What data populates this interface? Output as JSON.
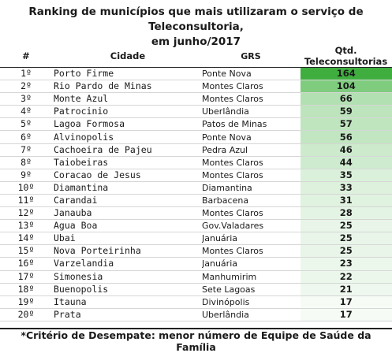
{
  "title_line1": "Ranking de municípios que mais utilizaram o serviço de Teleconsultoria,",
  "title_line2": "em junho/2017",
  "columns": {
    "rank": "#",
    "city": "Cidade",
    "grs": "GRS",
    "qtd": "Qtd. Teleconsultorias"
  },
  "rows": [
    {
      "rank": "1º",
      "city": "Porto Firme",
      "grs": "Ponte Nova",
      "qtd": "164",
      "color": "#3fae3f"
    },
    {
      "rank": "2º",
      "city": "Rio Pardo de Minas",
      "grs": "Montes Claros",
      "qtd": "104",
      "color": "#7fcc7f"
    },
    {
      "rank": "3º",
      "city": "Monte Azul",
      "grs": "Montes Claros",
      "qtd": "66",
      "color": "#b3e0b3"
    },
    {
      "rank": "4º",
      "city": "Patrocinio",
      "grs": "Uberlândia",
      "qtd": "59",
      "color": "#bde4bd"
    },
    {
      "rank": "5º",
      "city": "Lagoa Formosa",
      "grs": "Patos de Minas",
      "qtd": "57",
      "color": "#bfe5bf"
    },
    {
      "rank": "6º",
      "city": "Alvinopolis",
      "grs": "Ponte Nova",
      "qtd": "56",
      "color": "#c1e6c1"
    },
    {
      "rank": "7º",
      "city": "Cachoeira de Pajeu",
      "grs": "Pedra Azul",
      "qtd": "46",
      "color": "#cdeacd"
    },
    {
      "rank": "8º",
      "city": "Taiobeiras",
      "grs": "Montes Claros",
      "qtd": "44",
      "color": "#cfebcf"
    },
    {
      "rank": "9º",
      "city": "Coracao de Jesus",
      "grs": "Montes Claros",
      "qtd": "35",
      "color": "#dbf0db"
    },
    {
      "rank": "10º",
      "city": "Diamantina",
      "grs": "Diamantina",
      "qtd": "33",
      "color": "#ddf1dd"
    },
    {
      "rank": "11º",
      "city": "Carandai",
      "grs": "Barbacena",
      "qtd": "31",
      "color": "#e0f2e0"
    },
    {
      "rank": "12º",
      "city": "Janauba",
      "grs": "Montes Claros",
      "qtd": "28",
      "color": "#e4f4e4"
    },
    {
      "rank": "13º",
      "city": "Agua Boa",
      "grs": "Gov.Valadares",
      "qtd": "25",
      "color": "#e8f5e8"
    },
    {
      "rank": "14º",
      "city": "Ubai",
      "grs": "Januária",
      "qtd": "25",
      "color": "#e8f5e8"
    },
    {
      "rank": "15º",
      "city": "Nova Porteirinha",
      "grs": "Montes Claros",
      "qtd": "25",
      "color": "#e8f5e8"
    },
    {
      "rank": "16º",
      "city": "Varzelandia",
      "grs": "Januária",
      "qtd": "23",
      "color": "#ebf7eb"
    },
    {
      "rank": "17º",
      "city": "Simonesia",
      "grs": "Manhumirim",
      "qtd": "22",
      "color": "#ecf7ec"
    },
    {
      "rank": "18º",
      "city": "Buenopolis",
      "grs": "Sete Lagoas",
      "qtd": "21",
      "color": "#eef8ee"
    },
    {
      "rank": "19º",
      "city": "Itauna",
      "grs": "Divinópolis",
      "qtd": "17",
      "color": "#f6fbf6"
    },
    {
      "rank": "20º",
      "city": "Prata",
      "grs": "Uberlândia",
      "qtd": "17",
      "color": "#f6fbf6"
    }
  ],
  "footnote": "*Critério de Desempate: menor número de Equipe de Saúde da Família"
}
